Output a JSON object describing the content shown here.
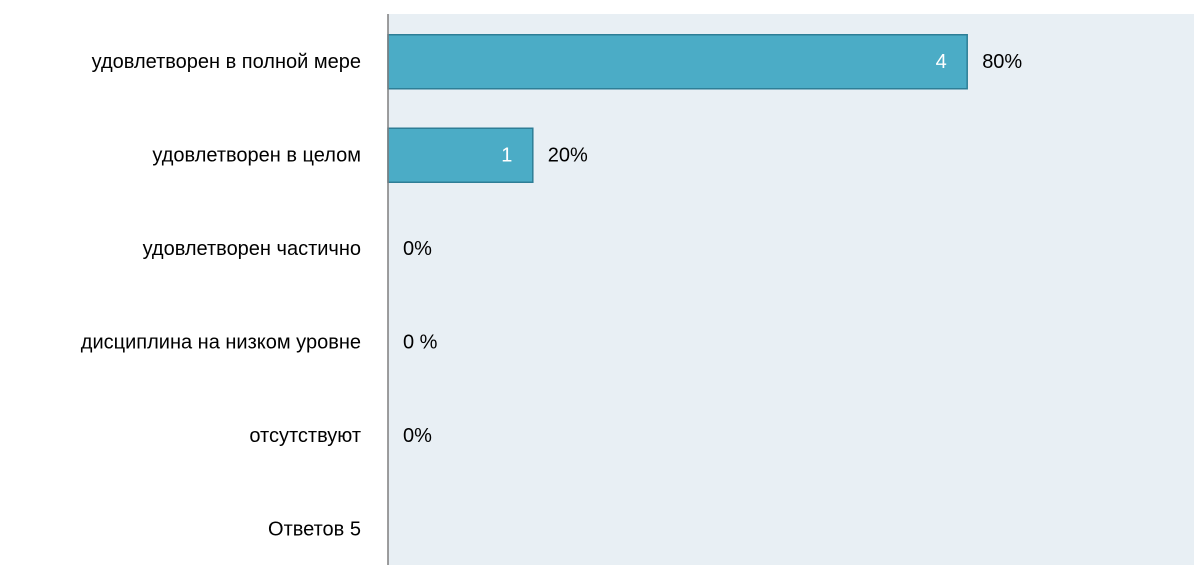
{
  "chart_data": {
    "type": "bar",
    "orientation": "horizontal",
    "categories": [
      "удовлетворен в полной мере",
      "удовлетворен в целом",
      "удовлетворен частично",
      "дисциплина на низком уровне",
      "отсутствуют",
      "Ответов 5"
    ],
    "values": [
      4,
      1,
      0,
      0,
      0,
      null
    ],
    "count_labels": [
      "4",
      "1",
      "",
      "",
      "",
      ""
    ],
    "percent_labels": [
      "80%",
      "20%",
      "0%",
      "0 %",
      "0%",
      ""
    ],
    "xlim": [
      0,
      5
    ],
    "grid": false,
    "legend": "none",
    "colors": {
      "bar_fill": "#4BACC6",
      "bar_stroke": "#2E7E96",
      "plot_background": "#E8EFF4",
      "axis_line": "#7F7F7F"
    }
  }
}
